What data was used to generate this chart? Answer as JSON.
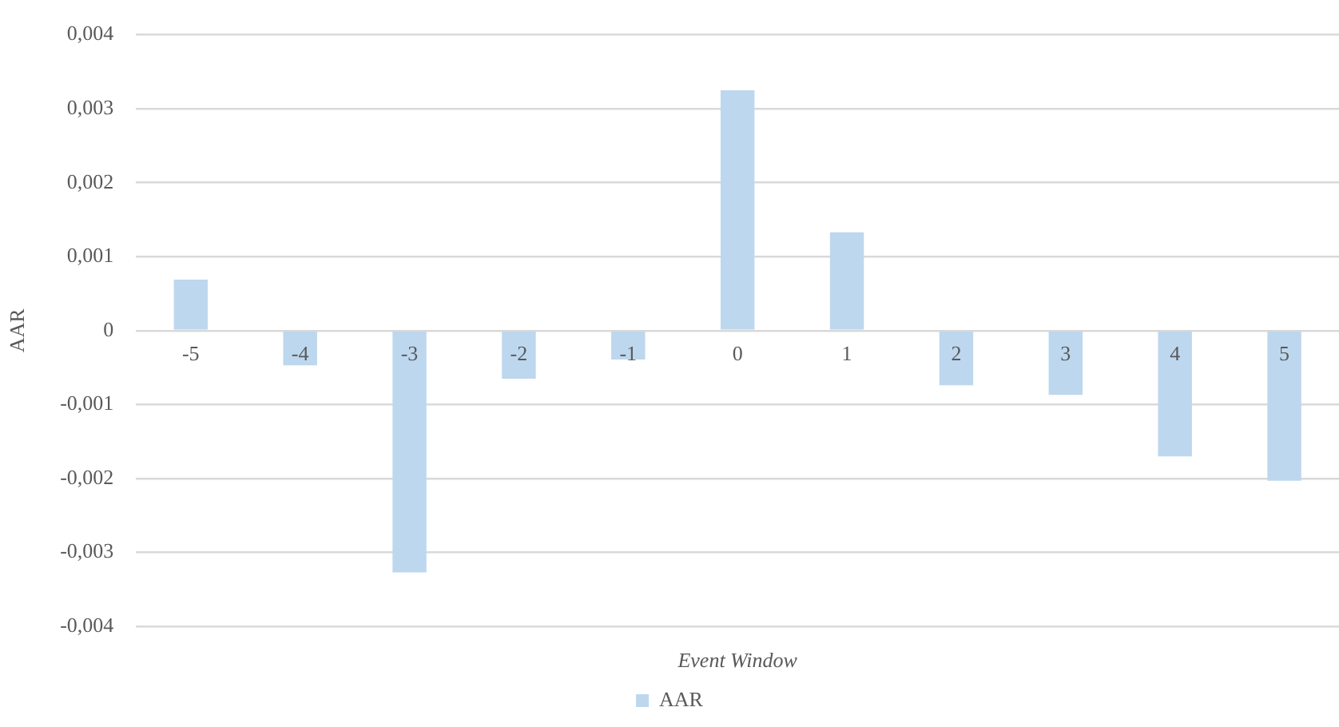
{
  "chart_data": {
    "type": "bar",
    "xlabel": "Event Window",
    "ylabel": "AAR",
    "categories": [
      "-5",
      "-4",
      "-3",
      "-2",
      "-1",
      "0",
      "1",
      "2",
      "3",
      "4",
      "5"
    ],
    "series": [
      {
        "name": "AAR",
        "color": "#bdd7ee",
        "values": [
          0.00069,
          -0.00047,
          -0.00327,
          -0.00065,
          -0.00039,
          0.00325,
          0.00133,
          -0.00074,
          -0.00087,
          -0.0017,
          -0.00203
        ]
      }
    ],
    "ylim": [
      -0.004,
      0.004
    ],
    "yticks": [
      {
        "value": -0.004,
        "label": "-0,004"
      },
      {
        "value": -0.003,
        "label": "-0,003"
      },
      {
        "value": -0.002,
        "label": "-0,002"
      },
      {
        "value": -0.001,
        "label": "-0,001"
      },
      0,
      {
        "value": 0.001,
        "label": "0,001"
      },
      {
        "value": 0.002,
        "label": "0,002"
      },
      {
        "value": 0.003,
        "label": "0,003"
      },
      {
        "value": 0.004,
        "label": "0,004"
      }
    ],
    "grid": "y",
    "legend": "bottom"
  }
}
